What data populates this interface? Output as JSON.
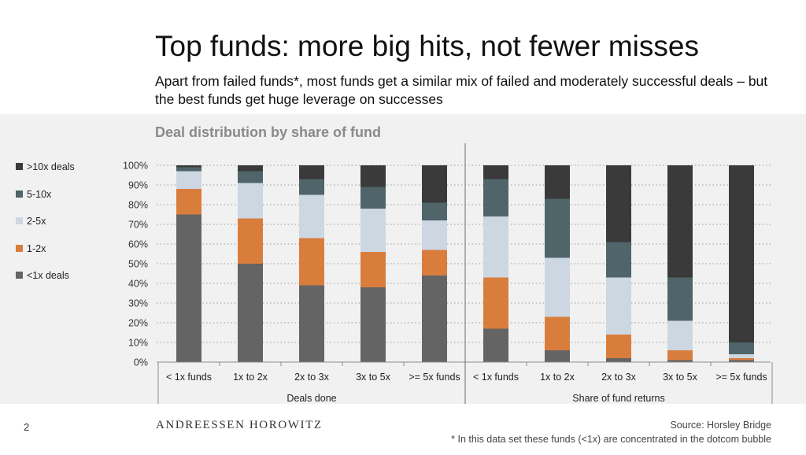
{
  "header": {
    "title": "Top funds: more big hits, not fewer misses",
    "subtitle": "Apart from failed funds*, most funds get a similar mix of failed and moderately successful deals – but the best funds get huge leverage on successes"
  },
  "chart_data": {
    "type": "bar",
    "stacked": true,
    "title": "Deal distribution by share of fund",
    "ylim": [
      0,
      100
    ],
    "yticks": [
      "0%",
      "10%",
      "20%",
      "30%",
      "40%",
      "50%",
      "60%",
      "70%",
      "80%",
      "90%",
      "100%"
    ],
    "categories": [
      "< 1x funds",
      "1x to 2x",
      "2x to 3x",
      "3x to 5x",
      ">= 5x funds",
      "< 1x funds",
      "1x to 2x",
      "2x to 3x",
      "3x to 5x",
      ">= 5x funds"
    ],
    "groups": [
      {
        "label": "Deals done",
        "count": 5
      },
      {
        "label": "Share of fund returns",
        "count": 5
      }
    ],
    "series": [
      {
        "name": "<1x deals",
        "color": "#646464",
        "values": [
          75,
          50,
          39,
          38,
          44,
          17,
          6,
          2,
          1,
          1
        ]
      },
      {
        "name": "1-2x",
        "color": "#d97d3d",
        "values": [
          13,
          23,
          24,
          18,
          13,
          26,
          17,
          12,
          5,
          1
        ]
      },
      {
        "name": "2-5x",
        "color": "#cdd7e2",
        "values": [
          9,
          18,
          22,
          22,
          15,
          31,
          30,
          29,
          15,
          2
        ]
      },
      {
        "name": "5-10x",
        "color": "#4f6569",
        "values": [
          2,
          6,
          8,
          11,
          9,
          19,
          30,
          18,
          22,
          6
        ]
      },
      {
        "name": ">10x deals",
        "color": "#3a3a3a",
        "values": [
          1,
          3,
          7,
          11,
          19,
          7,
          17,
          39,
          57,
          90
        ]
      }
    ],
    "legend_order": [
      ">10x deals",
      "5-10x",
      "2-5x",
      "1-2x",
      "<1x deals"
    ],
    "legend_position": "left"
  },
  "footer": {
    "page_number": "2",
    "logo": "ANDREESSEN HOROWITZ",
    "source": "Source: Horsley Bridge",
    "footnote": "* In this data set these funds (<1x) are concentrated in the dotcom bubble"
  }
}
